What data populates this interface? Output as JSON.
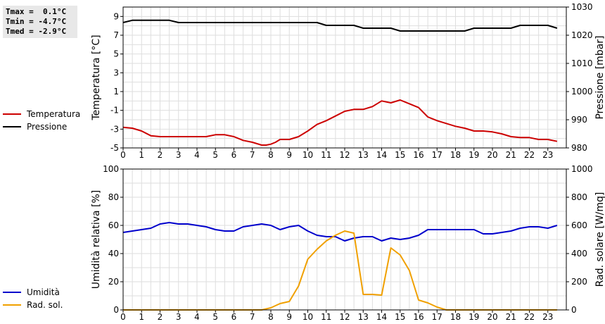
{
  "stats": {
    "tmax": "Tmax =  0.1°C",
    "tmin": "Tmin = -4.7°C",
    "tmed": "Tmed = -2.9°C"
  },
  "legend_top": [
    {
      "label": "Temperatura",
      "color": "#cc0000"
    },
    {
      "label": "Pressione",
      "color": "#000000"
    }
  ],
  "legend_bottom": [
    {
      "label": "Umidità",
      "color": "#0000cc"
    },
    {
      "label": "Rad. sol.",
      "color": "#f0a000"
    }
  ],
  "chart_data": [
    {
      "type": "line",
      "xlabel": "",
      "ylabel": "Temperatura [°C]",
      "y2label": "Pressione [mbar]",
      "xlim": [
        0,
        24
      ],
      "ylim": [
        -5,
        10
      ],
      "y2lim": [
        980,
        1030
      ],
      "xticks": [
        "0",
        "1",
        "2",
        "3",
        "4",
        "5",
        "6",
        "7",
        "8",
        "9",
        "10",
        "11",
        "12",
        "13",
        "14",
        "15",
        "16",
        "17",
        "18",
        "19",
        "20",
        "21",
        "22",
        "23"
      ],
      "yticks": [
        "-5",
        "-3",
        "-1",
        "1",
        "3",
        "5",
        "7",
        "9"
      ],
      "y2ticks": [
        "980",
        "990",
        "1000",
        "1010",
        "1020",
        "1030"
      ],
      "grid": true,
      "series": [
        {
          "name": "Temperatura",
          "axis": "left",
          "color": "#cc0000",
          "x": [
            0,
            0.5,
            1,
            1.5,
            2,
            2.5,
            3,
            3.5,
            4,
            4.5,
            5,
            5.5,
            6,
            6.5,
            7,
            7.5,
            7.75,
            8,
            8.25,
            8.5,
            8.75,
            9,
            9.5,
            10,
            10.5,
            11,
            11.5,
            12,
            12.5,
            13,
            13.5,
            14,
            14.5,
            15,
            15.5,
            16,
            16.5,
            17,
            17.5,
            18,
            18.5,
            19,
            19.5,
            20,
            20.5,
            21,
            21.5,
            22,
            22.5,
            23,
            23.5
          ],
          "y": [
            -2.8,
            -2.9,
            -3.2,
            -3.7,
            -3.8,
            -3.8,
            -3.8,
            -3.8,
            -3.8,
            -3.8,
            -3.6,
            -3.6,
            -3.8,
            -4.2,
            -4.4,
            -4.7,
            -4.7,
            -4.6,
            -4.4,
            -4.1,
            -4.1,
            -4.1,
            -3.8,
            -3.2,
            -2.5,
            -2.1,
            -1.6,
            -1.1,
            -0.9,
            -0.9,
            -0.6,
            0.0,
            -0.2,
            0.1,
            -0.3,
            -0.7,
            -1.7,
            -2.1,
            -2.4,
            -2.7,
            -2.9,
            -3.2,
            -3.2,
            -3.3,
            -3.5,
            -3.8,
            -3.9,
            -3.9,
            -4.1,
            -4.1,
            -4.3
          ]
        },
        {
          "name": "Pressione",
          "axis": "right",
          "color": "#000000",
          "x": [
            0,
            0.5,
            1,
            1.5,
            2,
            2.5,
            3,
            3.5,
            4,
            4.5,
            5,
            5.5,
            6,
            6.5,
            7,
            7.5,
            8,
            8.5,
            9,
            9.5,
            10,
            10.5,
            11,
            11.5,
            12,
            12.5,
            13,
            13.5,
            14,
            14.5,
            15,
            15.5,
            16,
            16.5,
            17,
            17.5,
            18,
            18.5,
            19,
            19.5,
            20,
            20.5,
            21,
            21.5,
            22,
            22.5,
            23,
            23.5
          ],
          "y": [
            1024.5,
            1025.3,
            1025.3,
            1025.3,
            1025.3,
            1025.3,
            1024.5,
            1024.5,
            1024.5,
            1024.5,
            1024.5,
            1024.5,
            1024.5,
            1024.5,
            1024.5,
            1024.5,
            1024.5,
            1024.5,
            1024.5,
            1024.5,
            1024.5,
            1024.5,
            1023.5,
            1023.5,
            1023.5,
            1023.5,
            1022.5,
            1022.5,
            1022.5,
            1022.5,
            1021.5,
            1021.5,
            1021.5,
            1021.5,
            1021.5,
            1021.5,
            1021.5,
            1021.5,
            1022.5,
            1022.5,
            1022.5,
            1022.5,
            1022.5,
            1023.5,
            1023.5,
            1023.5,
            1023.5,
            1022.5
          ]
        }
      ]
    },
    {
      "type": "line",
      "xlabel": "",
      "ylabel": "Umidità relativa [%]",
      "y2label": "Rad. solare [W/mq]",
      "xlim": [
        0,
        24
      ],
      "ylim": [
        0,
        100
      ],
      "y2lim": [
        0,
        1000
      ],
      "xticks": [
        "0",
        "1",
        "2",
        "3",
        "4",
        "5",
        "6",
        "7",
        "8",
        "9",
        "10",
        "11",
        "12",
        "13",
        "14",
        "15",
        "16",
        "17",
        "18",
        "19",
        "20",
        "21",
        "22",
        "23"
      ],
      "yticks": [
        "0",
        "20",
        "40",
        "60",
        "80",
        "100"
      ],
      "y2ticks": [
        "0",
        "200",
        "400",
        "600",
        "800",
        "1000"
      ],
      "grid": true,
      "series": [
        {
          "name": "Umidità",
          "axis": "left",
          "color": "#0000cc",
          "x": [
            0,
            0.5,
            1,
            1.5,
            2,
            2.5,
            3,
            3.5,
            4,
            4.5,
            5,
            5.5,
            6,
            6.5,
            7,
            7.5,
            8,
            8.5,
            9,
            9.5,
            10,
            10.5,
            11,
            11.5,
            12,
            12.5,
            13,
            13.5,
            14,
            14.5,
            15,
            15.5,
            16,
            16.5,
            17,
            17.5,
            18,
            18.5,
            19,
            19.5,
            20,
            20.5,
            21,
            21.5,
            22,
            22.5,
            23,
            23.5
          ],
          "y": [
            55,
            56,
            57,
            58,
            61,
            62,
            61,
            61,
            60,
            59,
            57,
            56,
            56,
            59,
            60,
            61,
            60,
            57,
            59,
            60,
            56,
            53,
            52,
            52,
            49,
            51,
            52,
            52,
            49,
            51,
            50,
            51,
            53,
            57,
            57,
            57,
            57,
            57,
            57,
            54,
            54,
            55,
            56,
            58,
            59,
            59,
            58,
            60
          ]
        },
        {
          "name": "Rad. sol.",
          "axis": "right",
          "color": "#f0a000",
          "x": [
            0,
            7.5,
            8,
            8.5,
            9,
            9.5,
            10,
            10.5,
            11,
            11.5,
            12,
            12.5,
            13,
            13.5,
            14,
            14.5,
            15,
            15.5,
            16,
            16.5,
            17,
            17.5,
            18,
            23.5
          ],
          "y": [
            0,
            0,
            15,
            45,
            60,
            170,
            360,
            430,
            490,
            530,
            560,
            545,
            110,
            110,
            105,
            440,
            390,
            280,
            70,
            50,
            20,
            0,
            0,
            0
          ]
        }
      ]
    }
  ]
}
